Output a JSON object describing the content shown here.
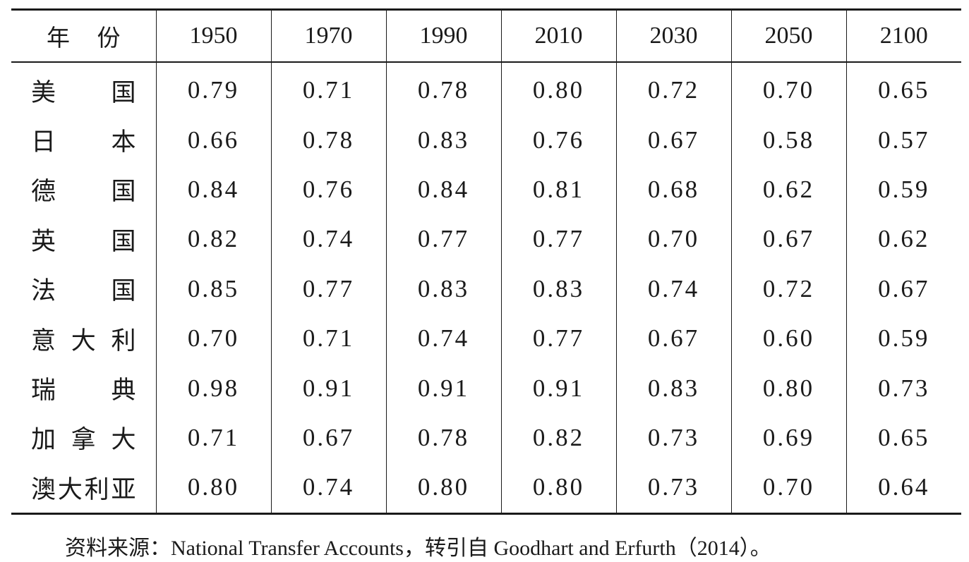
{
  "table": {
    "header": {
      "label": "年 份",
      "years": [
        "1950",
        "1970",
        "1990",
        "2010",
        "2030",
        "2050",
        "2100"
      ]
    },
    "rows": [
      {
        "country": "美　国",
        "values": [
          "0.79",
          "0.71",
          "0.78",
          "0.80",
          "0.72",
          "0.70",
          "0.65"
        ]
      },
      {
        "country": "日　本",
        "values": [
          "0.66",
          "0.78",
          "0.83",
          "0.76",
          "0.67",
          "0.58",
          "0.57"
        ]
      },
      {
        "country": "德　国",
        "values": [
          "0.84",
          "0.76",
          "0.84",
          "0.81",
          "0.68",
          "0.62",
          "0.59"
        ]
      },
      {
        "country": "英　国",
        "values": [
          "0.82",
          "0.74",
          "0.77",
          "0.77",
          "0.70",
          "0.67",
          "0.62"
        ]
      },
      {
        "country": "法　国",
        "values": [
          "0.85",
          "0.77",
          "0.83",
          "0.83",
          "0.74",
          "0.72",
          "0.67"
        ]
      },
      {
        "country": "意大利",
        "values": [
          "0.70",
          "0.71",
          "0.74",
          "0.77",
          "0.67",
          "0.60",
          "0.59"
        ]
      },
      {
        "country": "瑞　典",
        "values": [
          "0.98",
          "0.91",
          "0.91",
          "0.91",
          "0.83",
          "0.80",
          "0.73"
        ]
      },
      {
        "country": "加拿大",
        "values": [
          "0.71",
          "0.67",
          "0.78",
          "0.82",
          "0.73",
          "0.69",
          "0.65"
        ]
      },
      {
        "country": "澳大利亚",
        "values": [
          "0.80",
          "0.74",
          "0.80",
          "0.80",
          "0.73",
          "0.70",
          "0.64"
        ]
      }
    ]
  },
  "source": "资料来源：National Transfer Accounts，转引自 Goodhart and Erfurth（2014）。"
}
